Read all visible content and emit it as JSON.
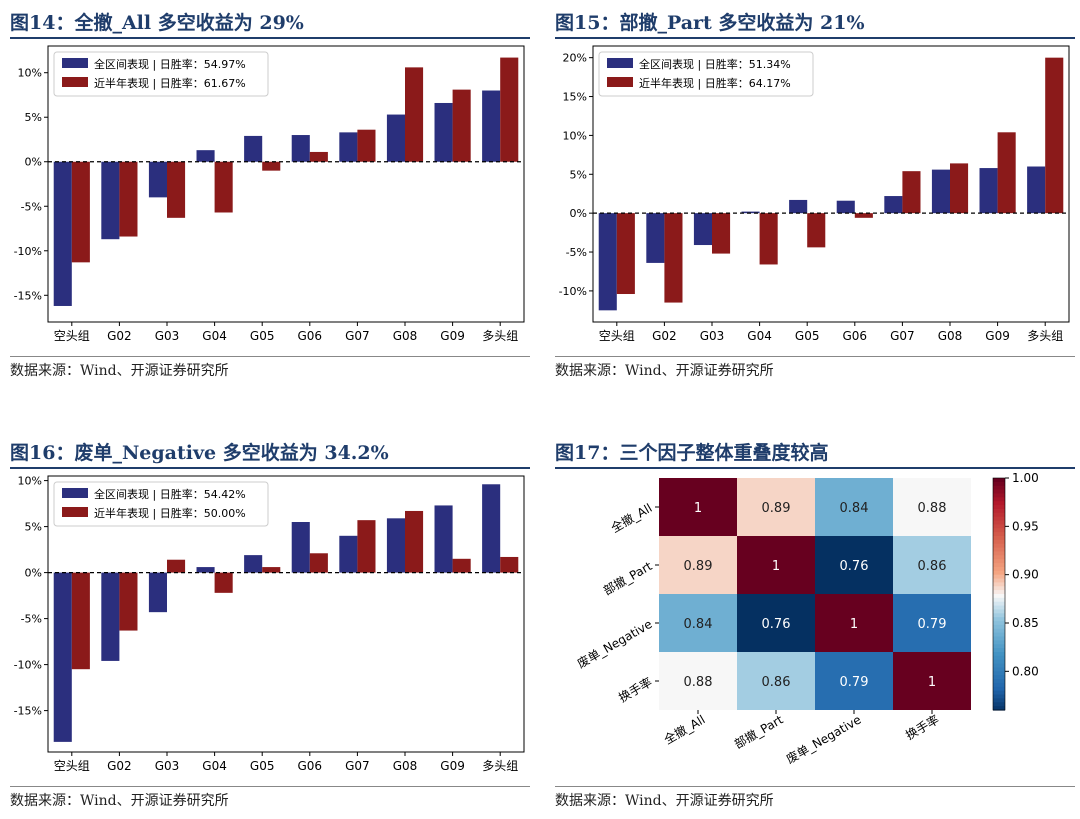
{
  "panels": [
    {
      "title": "图14：全撤_All 多空收益为 29%",
      "source": "数据来源：Wind、开源证券研究所",
      "chart_data": {
        "type": "bar",
        "categories": [
          "空头组",
          "G02",
          "G03",
          "G04",
          "G05",
          "G06",
          "G07",
          "G08",
          "G09",
          "多头组"
        ],
        "series": [
          {
            "name": "全区间表现 | 日胜率：54.97%",
            "color": "#2b2f7e",
            "values": [
              -16.2,
              -8.7,
              -4.0,
              1.3,
              2.9,
              3.0,
              3.3,
              5.3,
              6.6,
              8.0
            ]
          },
          {
            "name": "近半年表现 | 日胜率：61.67%",
            "color": "#8b1a1a",
            "values": [
              -11.3,
              -8.4,
              -6.3,
              -5.7,
              -1.0,
              1.1,
              3.6,
              10.6,
              8.1,
              11.7
            ]
          }
        ],
        "ylim": [
          -18,
          13
        ],
        "yticks": [
          -15,
          -10,
          -5,
          0,
          5,
          10
        ],
        "ytick_labels": [
          "-15%",
          "-10%",
          "-5%",
          "0%",
          "5%",
          "10%"
        ],
        "legend": "top-left",
        "zero_line": "dashed"
      }
    },
    {
      "title": "图15：部撤_Part 多空收益为 21%",
      "source": "数据来源：Wind、开源证券研究所",
      "chart_data": {
        "type": "bar",
        "categories": [
          "空头组",
          "G02",
          "G03",
          "G04",
          "G05",
          "G06",
          "G07",
          "G08",
          "G09",
          "多头组"
        ],
        "series": [
          {
            "name": "全区间表现 | 日胜率：51.34%",
            "color": "#2b2f7e",
            "values": [
              -12.5,
              -6.4,
              -4.1,
              0.2,
              1.7,
              1.6,
              2.2,
              5.6,
              5.8,
              6.0
            ]
          },
          {
            "name": "近半年表现 | 日胜率：64.17%",
            "color": "#8b1a1a",
            "values": [
              -10.4,
              -11.5,
              -5.2,
              -6.6,
              -4.4,
              -0.6,
              5.4,
              6.4,
              10.4,
              20.0
            ]
          }
        ],
        "ylim": [
          -14,
          21.5
        ],
        "yticks": [
          -10,
          -5,
          0,
          5,
          10,
          15,
          20
        ],
        "ytick_labels": [
          "-10%",
          "-5%",
          "0%",
          "5%",
          "10%",
          "15%",
          "20%"
        ],
        "legend": "top-left",
        "zero_line": "dashed"
      }
    },
    {
      "title": "图16：废单_Negative 多空收益为 34.2%",
      "source": "数据来源：Wind、开源证券研究所",
      "chart_data": {
        "type": "bar",
        "categories": [
          "空头组",
          "G02",
          "G03",
          "G04",
          "G05",
          "G06",
          "G07",
          "G08",
          "G09",
          "多头组"
        ],
        "series": [
          {
            "name": "全区间表现 | 日胜率：54.42%",
            "color": "#2b2f7e",
            "values": [
              -18.4,
              -9.6,
              -4.3,
              0.6,
              1.9,
              5.5,
              4.0,
              5.9,
              7.3,
              9.6
            ]
          },
          {
            "name": "近半年表现 | 日胜率：50.00%",
            "color": "#8b1a1a",
            "values": [
              -10.5,
              -6.3,
              1.4,
              -2.2,
              0.6,
              2.1,
              5.7,
              6.7,
              1.5,
              1.7
            ]
          }
        ],
        "ylim": [
          -19.5,
          10.5
        ],
        "yticks": [
          -15,
          -10,
          -5,
          0,
          5,
          10
        ],
        "ytick_labels": [
          "-15%",
          "-10%",
          "-5%",
          "0%",
          "5%",
          "10%"
        ],
        "legend": "top-left",
        "zero_line": "dashed"
      }
    },
    {
      "title": "图17：三个因子整体重叠度较高",
      "source": "数据来源：Wind、开源证券研究所",
      "chart_data": {
        "type": "heatmap",
        "rows": [
          "全撤_All",
          "部撤_Part",
          "废单_Negative",
          "换手率"
        ],
        "columns": [
          "全撤_All",
          "部撤_Part",
          "废单_Negative",
          "换手率"
        ],
        "values": [
          [
            1,
            0.89,
            0.84,
            0.88
          ],
          [
            0.89,
            1,
            0.76,
            0.86
          ],
          [
            0.84,
            0.76,
            1,
            0.79
          ],
          [
            0.88,
            0.86,
            0.79,
            1
          ]
        ],
        "cell_labels": [
          [
            "1",
            "0.89",
            "0.84",
            "0.88"
          ],
          [
            "0.89",
            "1",
            "0.76",
            "0.86"
          ],
          [
            "0.84",
            "0.76",
            "1",
            "0.79"
          ],
          [
            "0.88",
            "0.86",
            "0.79",
            "1"
          ]
        ],
        "colorscale": "RdBu_r",
        "vmin": 0.76,
        "vmax": 1.0,
        "colorbar_ticks": [
          0.8,
          0.85,
          0.9,
          0.95,
          1.0
        ],
        "colorbar_tick_labels": [
          "0.80",
          "0.85",
          "0.90",
          "0.95",
          "1.00"
        ]
      }
    }
  ]
}
